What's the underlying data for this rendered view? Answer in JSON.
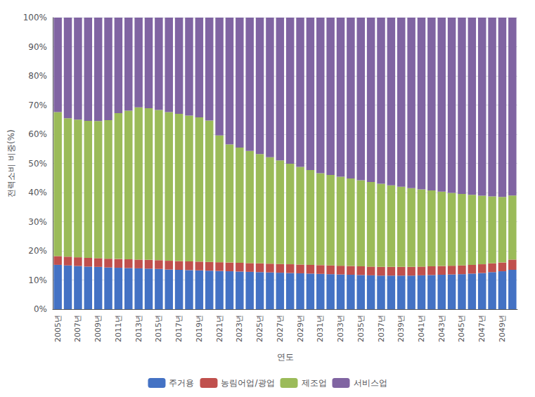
{
  "chart_data": {
    "type": "bar",
    "stacked": true,
    "xlabel": "연도",
    "ylabel": "전력소비 비중(%)",
    "categories": [
      "2005년",
      null,
      "2007년",
      null,
      "2009년",
      null,
      "2011년",
      null,
      "2013년",
      null,
      "2015년",
      null,
      "2017년",
      null,
      "2019년",
      null,
      "2021년",
      null,
      "2023년",
      null,
      "2025년",
      null,
      "2027년",
      null,
      "2029년",
      null,
      "2031년",
      null,
      "2033년",
      null,
      "2035년",
      null,
      "2037년",
      null,
      "2039년",
      null,
      "2041년",
      null,
      "2043년",
      null,
      "2045년",
      null,
      "2047년",
      null,
      "2049년",
      null
    ],
    "series": [
      {
        "name": "주거용",
        "color": "#4472C4",
        "values": [
          15.2,
          15.0,
          14.8,
          14.6,
          14.5,
          14.3,
          14.2,
          14.1,
          14.0,
          13.9,
          13.8,
          13.6,
          13.5,
          13.4,
          13.3,
          13.2,
          13.1,
          13.0,
          12.9,
          12.8,
          12.7,
          12.6,
          12.5,
          12.4,
          12.3,
          12.2,
          12.1,
          12.0,
          11.9,
          11.8,
          11.7,
          11.6,
          11.5,
          11.5,
          11.5,
          11.5,
          11.6,
          11.7,
          11.8,
          11.9,
          12.0,
          12.2,
          12.4,
          12.7,
          13.0,
          13.5
        ]
      },
      {
        "name": "농림어업/광업",
        "color": "#C0504D",
        "values": [
          3.0,
          3.0,
          3.0,
          3.0,
          3.0,
          3.0,
          3.0,
          3.0,
          3.0,
          3.0,
          3.0,
          3.0,
          3.0,
          3.0,
          3.0,
          3.0,
          3.0,
          3.0,
          3.0,
          3.0,
          3.0,
          3.0,
          3.0,
          3.0,
          3.0,
          3.0,
          3.0,
          3.0,
          3.0,
          3.0,
          3.0,
          3.0,
          3.0,
          3.0,
          3.0,
          3.0,
          3.0,
          3.0,
          3.0,
          3.0,
          3.0,
          3.0,
          3.0,
          3.0,
          3.0,
          3.5
        ]
      },
      {
        "name": "제조업",
        "color": "#9BBB59",
        "values": [
          49.4,
          47.5,
          47.2,
          47.0,
          47.0,
          47.5,
          50.0,
          51.0,
          52.2,
          52.0,
          51.5,
          51.0,
          50.5,
          50.0,
          49.5,
          48.5,
          43.5,
          40.5,
          39.5,
          38.5,
          37.5,
          36.5,
          35.5,
          34.5,
          33.5,
          32.5,
          31.5,
          31.0,
          30.5,
          30.0,
          29.5,
          29.0,
          28.5,
          28.0,
          27.5,
          27.0,
          26.5,
          26.0,
          25.5,
          25.0,
          24.5,
          24.0,
          23.5,
          23.0,
          22.5,
          22.0
        ]
      },
      {
        "name": "서비스업",
        "color": "#8064A2",
        "values": [
          32.4,
          34.5,
          35.0,
          35.4,
          35.5,
          35.2,
          32.8,
          31.9,
          30.8,
          31.1,
          31.7,
          32.4,
          33.0,
          33.6,
          34.2,
          35.3,
          40.4,
          43.5,
          44.6,
          45.7,
          46.8,
          47.9,
          49.0,
          50.1,
          51.2,
          52.3,
          53.4,
          54.0,
          54.6,
          55.2,
          55.8,
          56.4,
          57.0,
          57.5,
          58.0,
          58.5,
          58.9,
          59.3,
          59.7,
          60.1,
          60.5,
          60.8,
          61.1,
          61.3,
          61.5,
          61.0
        ]
      }
    ],
    "ylim": [
      0,
      100
    ],
    "yticks": [
      {
        "value": 0,
        "label": "0%"
      },
      {
        "value": 10,
        "label": "10%"
      },
      {
        "value": 20,
        "label": "20%"
      },
      {
        "value": 30,
        "label": "30%"
      },
      {
        "value": 40,
        "label": "40%"
      },
      {
        "value": 50,
        "label": "50%"
      },
      {
        "value": 60,
        "label": "60%"
      },
      {
        "value": 70,
        "label": "70%"
      },
      {
        "value": 80,
        "label": "80%"
      },
      {
        "value": 90,
        "label": "90%"
      },
      {
        "value": 100,
        "label": "100%"
      }
    ],
    "grid": true,
    "legend": "bottom"
  }
}
